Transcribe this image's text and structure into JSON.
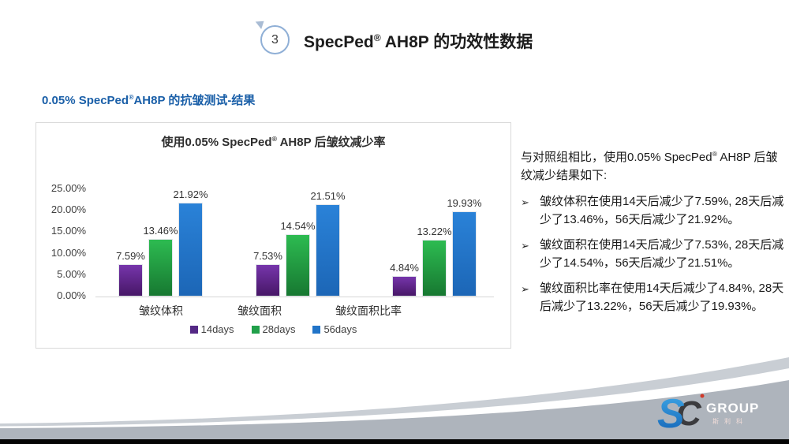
{
  "header": {
    "step_number": "3",
    "title": {
      "brand": "SpecPed",
      "reg": "®",
      "rest": " AH8P 的功效性数据"
    }
  },
  "subtitle": {
    "pre": "0.05% SpecPed",
    "reg": "®",
    "post": "AH8P 的抗皱测试-结果"
  },
  "results": {
    "intro": {
      "pre": "与对照组相比，使用0.05% SpecPed",
      "reg": "®",
      "post": " AH8P 后皱纹减少结果如下:"
    },
    "bullet_marker": "➢",
    "bullets": [
      "皱纹体积在使用14天后减少了7.59%, 28天后减少了13.46%，56天后减少了21.92%。",
      "皱纹面积在使用14天后减少了7.53%, 28天后减少了14.54%，56天后减少了21.51%。",
      "皱纹面积比率在使用14天后减少了4.84%, 28天后减少了13.22%，56天后减少了19.93%。"
    ]
  },
  "chart_data": {
    "type": "bar",
    "title": {
      "pre": "使用0.05% SpecPed",
      "reg": "®",
      "post": " AH8P 后皱纹减少率"
    },
    "title_full": "使用0.05% SpecPed® AH8P 后皱纹减少率",
    "categories": [
      "皱纹体积",
      "皱纹面积",
      "皱纹面积比率"
    ],
    "series": [
      {
        "name": "14days",
        "color": "#542885",
        "gradient": [
          "#7635ab",
          "#471767"
        ],
        "values": [
          7.59,
          7.53,
          4.84
        ]
      },
      {
        "name": "28days",
        "color": "#21a04a",
        "gradient": [
          "#2dbb51",
          "#177831"
        ],
        "values": [
          13.46,
          14.54,
          13.22
        ]
      },
      {
        "name": "56days",
        "color": "#2174c8",
        "gradient": [
          "#2a82d8",
          "#1c66b6"
        ],
        "values": [
          21.92,
          21.51,
          19.93
        ]
      }
    ],
    "y_ticks": [
      {
        "value": 0,
        "label": "0.00%"
      },
      {
        "value": 5,
        "label": "5.00%"
      },
      {
        "value": 10,
        "label": "10.00%"
      },
      {
        "value": 15,
        "label": "15.00%"
      },
      {
        "value": 20,
        "label": "20.00%"
      },
      {
        "value": 25,
        "label": "25.00%"
      }
    ],
    "ylim": [
      0,
      25
    ],
    "value_suffix": "%",
    "grid": false,
    "legend_position": "bottom"
  },
  "logo": {
    "mark_s": "S",
    "mark_c": "C",
    "name": "GROUP",
    "subtext": "斯利科"
  },
  "colors": {
    "accent_blue": "#1a5fa8",
    "swoosh_silver": "#c9ced4",
    "swoosh_gray": "#aeb4bc",
    "logo_blue_top": "#3fa9e8",
    "logo_blue_bottom": "#1261b4",
    "logo_dark": "#3b3b3e",
    "logo_red": "#d03a2a"
  }
}
